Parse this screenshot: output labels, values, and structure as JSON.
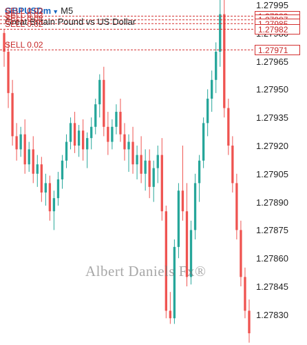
{
  "header": {
    "symbol": "GBPUSDm",
    "timeframe": "M5",
    "description": "Great Britain Pound vs US Dollar"
  },
  "price_axis": {
    "labels": [
      "1.27995",
      "1.27980",
      "1.27965",
      "1.27950",
      "1.27935",
      "1.27920",
      "1.27905",
      "1.27890",
      "1.27875",
      "1.27860",
      "1.27845",
      "1.27830"
    ]
  },
  "orders": [
    {
      "label": "SELL 0.02",
      "price": "1.27989"
    },
    {
      "label": "SELL 0.02",
      "price": "1.27987"
    },
    {
      "label": "SELL 0.02",
      "price": "1.27985"
    },
    {
      "label": "SELL 0.02",
      "price": "1.27982"
    },
    {
      "label": "SELL 0.02",
      "price": "1.27971"
    }
  ],
  "watermark": "Albert Daniels Fx®",
  "colors": {
    "bull": "#26a69a",
    "bear": "#ef5350",
    "order_line": "#d32f2f"
  },
  "candles": [
    [
      1.2798,
      1.27982,
      1.27962,
      1.2797
    ],
    [
      1.2797,
      1.27975,
      1.2794,
      1.27948
    ],
    [
      1.27948,
      1.27955,
      1.2792,
      1.27925
    ],
    [
      1.27925,
      1.27932,
      1.27912,
      1.27918
    ],
    [
      1.27918,
      1.2793,
      1.27914,
      1.27926
    ],
    [
      1.27926,
      1.27934,
      1.27905,
      1.2791
    ],
    [
      1.2791,
      1.27922,
      1.27906,
      1.27918
    ],
    [
      1.27918,
      1.27925,
      1.279,
      1.27905
    ],
    [
      1.27905,
      1.27915,
      1.27898,
      1.2791
    ],
    [
      1.2791,
      1.27914,
      1.2789,
      1.27895
    ],
    [
      1.27895,
      1.27905,
      1.27888,
      1.279
    ],
    [
      1.279,
      1.27904,
      1.2788,
      1.27885
    ],
    [
      1.27885,
      1.27896,
      1.27875,
      1.27892
    ],
    [
      1.27892,
      1.27906,
      1.27888,
      1.27902
    ],
    [
      1.27902,
      1.27915,
      1.27897,
      1.27912
    ],
    [
      1.27912,
      1.27926,
      1.27908,
      1.27922
    ],
    [
      1.27922,
      1.27935,
      1.27918,
      1.27932
    ],
    [
      1.27932,
      1.27938,
      1.27916,
      1.2792
    ],
    [
      1.2792,
      1.27931,
      1.27914,
      1.27928
    ],
    [
      1.27928,
      1.27934,
      1.27912,
      1.27918
    ],
    [
      1.27918,
      1.27927,
      1.27908,
      1.27924
    ],
    [
      1.27924,
      1.27935,
      1.27918,
      1.2793
    ],
    [
      1.2793,
      1.27945,
      1.27926,
      1.27942
    ],
    [
      1.27942,
      1.27958,
      1.27935,
      1.27955
    ],
    [
      1.27955,
      1.27962,
      1.27925,
      1.2793
    ],
    [
      1.2793,
      1.27938,
      1.27915,
      1.27922
    ],
    [
      1.27922,
      1.27934,
      1.27918,
      1.2793
    ],
    [
      1.2793,
      1.27942,
      1.27926,
      1.27938
    ],
    [
      1.27938,
      1.27945,
      1.27922,
      1.27926
    ],
    [
      1.27926,
      1.27932,
      1.27912,
      1.27918
    ],
    [
      1.27918,
      1.27926,
      1.27906,
      1.27922
    ],
    [
      1.27922,
      1.2793,
      1.27905,
      1.2791
    ],
    [
      1.2791,
      1.2792,
      1.27902,
      1.27915
    ],
    [
      1.27915,
      1.27925,
      1.279,
      1.27905
    ],
    [
      1.27905,
      1.27918,
      1.27896,
      1.27912
    ],
    [
      1.27912,
      1.27918,
      1.27892,
      1.27898
    ],
    [
      1.27898,
      1.27912,
      1.2789,
      1.27908
    ],
    [
      1.27908,
      1.2792,
      1.279,
      1.27915
    ],
    [
      1.27915,
      1.27924,
      1.2788,
      1.27885
    ],
    [
      1.27885,
      1.27888,
      1.27828,
      1.27832
    ],
    [
      1.27832,
      1.27842,
      1.27825,
      1.27828
    ],
    [
      1.27828,
      1.2787,
      1.27825,
      1.27866
    ],
    [
      1.27866,
      1.279,
      1.2786,
      1.27896
    ],
    [
      1.27896,
      1.2792,
      1.2788,
      1.27885
    ],
    [
      1.27885,
      1.279,
      1.27845,
      1.2785
    ],
    [
      1.2785,
      1.2788,
      1.27846,
      1.27875
    ],
    [
      1.27875,
      1.27905,
      1.2787,
      1.279
    ],
    [
      1.279,
      1.27915,
      1.2789,
      1.27912
    ],
    [
      1.27912,
      1.27935,
      1.27908,
      1.27932
    ],
    [
      1.27932,
      1.2795,
      1.27925,
      1.27945
    ],
    [
      1.27945,
      1.2796,
      1.27938,
      1.27955
    ],
    [
      1.27955,
      1.27975,
      1.27948,
      1.2797
    ],
    [
      1.2797,
      1.28002,
      1.27962,
      1.2799
    ],
    [
      1.2799,
      1.27998,
      1.27935,
      1.2794
    ],
    [
      1.2794,
      1.27945,
      1.27915,
      1.2792
    ],
    [
      1.2792,
      1.27925,
      1.27895,
      1.279
    ],
    [
      1.279,
      1.27905,
      1.2787,
      1.27875
    ],
    [
      1.27875,
      1.2788,
      1.27845,
      1.2785
    ],
    [
      1.2785,
      1.27855,
      1.27828,
      1.27832
    ],
    [
      1.27832,
      1.27838,
      1.27815,
      1.2782
    ]
  ]
}
